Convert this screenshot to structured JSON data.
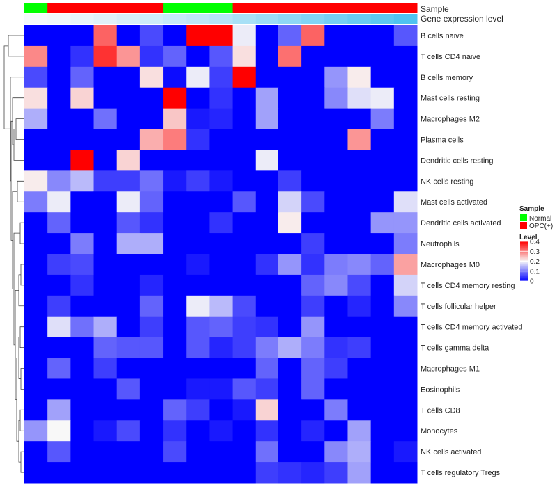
{
  "chart_data": {
    "type": "heatmap",
    "annotation_labels": [
      "Sample",
      "Gene expression level"
    ],
    "rows": [
      "B cells naive",
      "T cells CD4 naive",
      "B cells memory",
      "Mast cells resting",
      "Macrophages M2",
      "Plasma cells",
      "Dendritic cells resting",
      "NK cells resting",
      "Mast cells activated",
      "Dendritic cells activated",
      "Neutrophils",
      "Macrophages M0",
      "T cells CD4 memory resting",
      "T cells follicular helper",
      "T cells CD4 memory activated",
      "T cells gamma delta",
      "Macrophages M1",
      "Eosinophils",
      "T cells CD8",
      "Monocytes",
      "NK cells activated",
      "T cells regulatory  Tregs"
    ],
    "sample_groups": [
      "Normal",
      "OPC(+)",
      "OPC(+)",
      "OPC(+)",
      "OPC(+)",
      "OPC(+)",
      "Normal",
      "Normal",
      "Normal",
      "OPC(+)",
      "OPC(+)",
      "OPC(+)",
      "OPC(+)",
      "OPC(+)",
      "OPC(+)",
      "OPC(+)",
      "OPC(+)"
    ],
    "expression_level": [
      0.02,
      0.03,
      0.05,
      0.07,
      0.09,
      0.11,
      0.13,
      0.15,
      0.17,
      0.2,
      0.23,
      0.26,
      0.29,
      0.32,
      0.35,
      0.38,
      0.41
    ],
    "values": [
      [
        0,
        0,
        0,
        0.32,
        0,
        0.06,
        0,
        0.4,
        0.4,
        0.19,
        0,
        0.08,
        0.32,
        0,
        0,
        0,
        0.07
      ],
      [
        0.29,
        0,
        0.04,
        0.36,
        0.28,
        0.04,
        0.08,
        0,
        0.07,
        0.22,
        0,
        0.31,
        0,
        0,
        0,
        0,
        0
      ],
      [
        0.06,
        0,
        0.08,
        0,
        0,
        0.22,
        0.01,
        0.19,
        0.05,
        0.4,
        0,
        0,
        0,
        0.12,
        0.21,
        0,
        0
      ],
      [
        0.22,
        0,
        0.23,
        0,
        0,
        0,
        0.4,
        0,
        0.04,
        0,
        0.13,
        0,
        0,
        0.11,
        0.18,
        0.19,
        0
      ],
      [
        0.14,
        0,
        0,
        0.09,
        0,
        0,
        0.24,
        0.02,
        0.03,
        0,
        0.13,
        0,
        0,
        0,
        0,
        0.1,
        0
      ],
      [
        0,
        0,
        0,
        0,
        0,
        0.26,
        0.3,
        0.04,
        0,
        0,
        0,
        0,
        0,
        0,
        0.28,
        0,
        0
      ],
      [
        0,
        0,
        0.4,
        0,
        0.23,
        0,
        0,
        0,
        0,
        0,
        0.19,
        0,
        0,
        0,
        0,
        0,
        0
      ],
      [
        0.21,
        0.11,
        0.15,
        0.05,
        0.05,
        0.09,
        0.02,
        0.05,
        0.02,
        0,
        0,
        0.05,
        0,
        0,
        0,
        0,
        0
      ],
      [
        0.1,
        0.19,
        0,
        0,
        0.19,
        0.08,
        0,
        0,
        0,
        0.07,
        0,
        0.17,
        0.06,
        0,
        0,
        0,
        0.18
      ],
      [
        0,
        0.08,
        0,
        0,
        0.07,
        0.04,
        0,
        0,
        0.04,
        0,
        0,
        0.21,
        0,
        0,
        0,
        0.12,
        0.12
      ],
      [
        0,
        0,
        0.1,
        0,
        0.14,
        0.14,
        0,
        0,
        0,
        0,
        0,
        0,
        0.05,
        0,
        0,
        0,
        0.1
      ],
      [
        0,
        0.05,
        0.06,
        0,
        0,
        0,
        0,
        0.02,
        0,
        0,
        0.04,
        0.12,
        0.04,
        0.1,
        0.11,
        0.08,
        0.27
      ],
      [
        0,
        0,
        0.04,
        0,
        0,
        0.03,
        0,
        0,
        0,
        0,
        0,
        0,
        0.08,
        0.11,
        0.06,
        0,
        0.17
      ],
      [
        0,
        0.05,
        0,
        0,
        0,
        0.08,
        0,
        0.19,
        0.15,
        0.06,
        0,
        0,
        0.05,
        0,
        0.03,
        0,
        0.11
      ],
      [
        0,
        0.18,
        0.09,
        0.14,
        0,
        0.05,
        0,
        0.07,
        0.08,
        0.05,
        0.04,
        0,
        0.12,
        0,
        0,
        0,
        0
      ],
      [
        0,
        0,
        0,
        0.08,
        0.07,
        0.07,
        0,
        0.07,
        0.03,
        0.05,
        0.1,
        0.14,
        0.1,
        0.04,
        0.05,
        0,
        0
      ],
      [
        0,
        0.08,
        0,
        0.05,
        0,
        0,
        0,
        0,
        0,
        0,
        0.08,
        0,
        0.08,
        0.05,
        0,
        0,
        0
      ],
      [
        0,
        0,
        0,
        0,
        0.07,
        0,
        0,
        0.02,
        0.02,
        0.07,
        0.05,
        0,
        0.08,
        0,
        0,
        0,
        0
      ],
      [
        0,
        0.13,
        0,
        0,
        0,
        0,
        0.08,
        0.05,
        0,
        0.02,
        0.23,
        0,
        0,
        0.1,
        0,
        0,
        0
      ],
      [
        0.12,
        0.2,
        0,
        0.02,
        0.06,
        0,
        0.04,
        0,
        0.02,
        0,
        0.04,
        0,
        0.03,
        0,
        0.13,
        0,
        0
      ],
      [
        0,
        0.07,
        0,
        0,
        0,
        0,
        0.06,
        0,
        0,
        0,
        0.09,
        0,
        0,
        0.11,
        0.14,
        0,
        0.02
      ],
      [
        0,
        0,
        0,
        0,
        0,
        0,
        0,
        0,
        0,
        0,
        0.05,
        0.04,
        0.03,
        0.05,
        0.13,
        0,
        0
      ]
    ],
    "legend": {
      "sample_title": "Sample",
      "sample_items": [
        {
          "label": "Normal",
          "color": "#00ff00"
        },
        {
          "label": "OPC(+)",
          "color": "#ff0000"
        }
      ],
      "level_title": "Level",
      "level_ticks": [
        "0.4",
        "0.3",
        "0.2",
        "0.1",
        "0"
      ],
      "level_tick_values": [
        0.4,
        0.3,
        0.2,
        0.1,
        0
      ]
    },
    "color_scale": {
      "low": "#0000ff",
      "mid": "#f8f8f8",
      "high": "#ff0000",
      "min": 0,
      "mid_value": 0.2,
      "max": 0.4
    },
    "expr_scale": {
      "low": "#f5f9fc",
      "high": "#4fc3f0"
    }
  }
}
